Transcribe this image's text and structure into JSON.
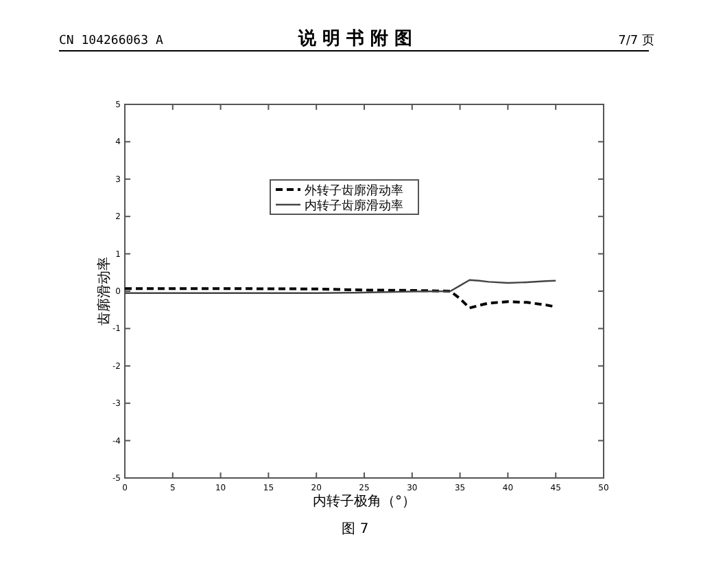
{
  "chart_data": {
    "type": "line",
    "title": "说 明 书 附 图",
    "xlabel": "内转子极角（°）",
    "ylabel": "齿廓滑动率",
    "annotations": [
      "CN 104266063 A",
      "7/7 页",
      "图 7"
    ],
    "xlim": [
      0,
      50
    ],
    "xticks": [
      0,
      5,
      10,
      15,
      20,
      25,
      30,
      35,
      40,
      45,
      50
    ],
    "ylim": [
      -5,
      5
    ],
    "yticks": [
      -5,
      -4,
      -3,
      -2,
      -1,
      0,
      1,
      2,
      3,
      4,
      5
    ],
    "grid": false,
    "legend": "top",
    "series": [
      {
        "name": "外转子齿廓滑动率",
        "color": "#000000",
        "line_style": "dashed",
        "x": [
          0,
          10,
          20,
          25,
          30,
          34,
          35,
          36,
          37,
          38,
          40,
          42,
          44,
          45
        ],
        "values": [
          0.07,
          0.07,
          0.06,
          0.03,
          0.02,
          0.0,
          -0.2,
          -0.45,
          -0.38,
          -0.32,
          -0.28,
          -0.3,
          -0.37,
          -0.42
        ]
      },
      {
        "name": "内转子齿廓滑动率",
        "color": "#444444",
        "line_style": "solid",
        "x": [
          0,
          10,
          20,
          24,
          30,
          34,
          35,
          36,
          37,
          38,
          40,
          42,
          44,
          45
        ],
        "values": [
          -0.05,
          -0.05,
          -0.05,
          -0.04,
          -0.01,
          0.0,
          0.15,
          0.3,
          0.28,
          0.25,
          0.22,
          0.24,
          0.27,
          0.28
        ]
      }
    ]
  }
}
